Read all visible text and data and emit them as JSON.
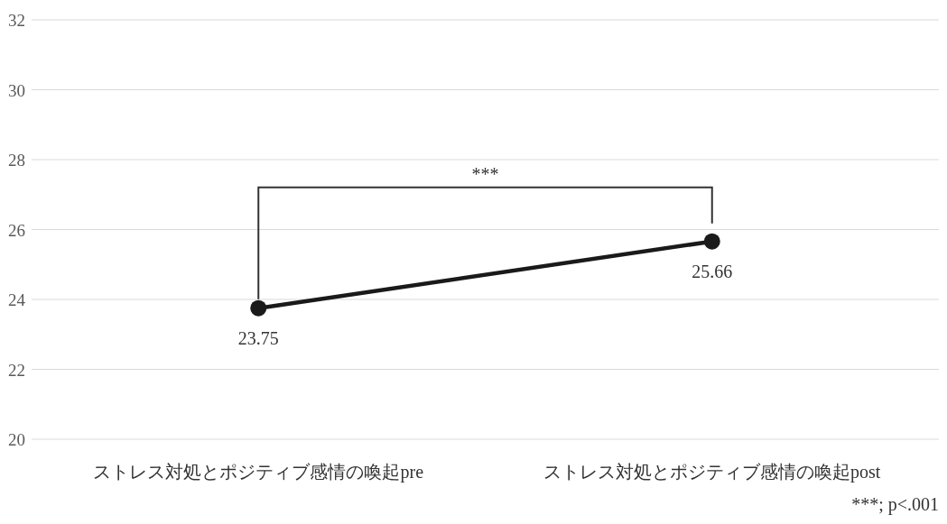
{
  "chart_data": {
    "type": "line",
    "categories": [
      "ストレス対処とポジティブ感情の喚起pre",
      "ストレス対処とポジティブ感情の喚起post"
    ],
    "values": [
      23.75,
      25.66
    ],
    "color": "#1a1a1a",
    "marker": "circle",
    "data_labels": true,
    "grid": "y",
    "ylim": [
      20,
      32
    ],
    "yticks": [
      20,
      22,
      24,
      26,
      28,
      30,
      32
    ],
    "annotations": [
      "***",
      "***; p<.001"
    ]
  }
}
